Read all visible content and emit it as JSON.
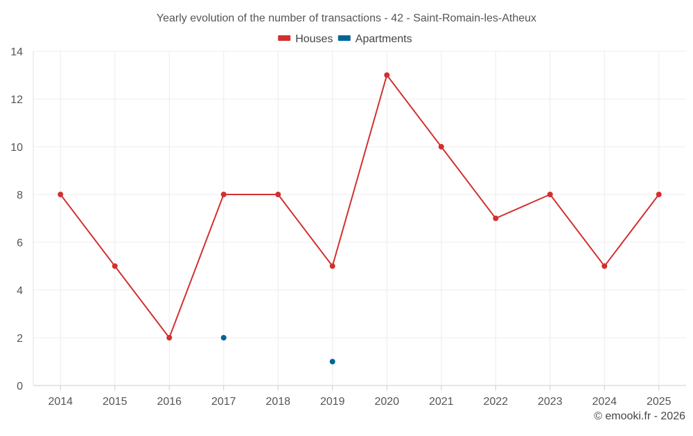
{
  "chart_data": {
    "type": "line",
    "title": "Yearly evolution of the number of transactions - 42 - Saint-Romain-les-Atheux",
    "categories": [
      "2014",
      "2015",
      "2016",
      "2017",
      "2018",
      "2019",
      "2020",
      "2021",
      "2022",
      "2023",
      "2024",
      "2025"
    ],
    "series": [
      {
        "name": "Houses",
        "color": "#d32f2f",
        "values": [
          8,
          5,
          2,
          8,
          8,
          5,
          13,
          10,
          7,
          8,
          5,
          8
        ]
      },
      {
        "name": "Apartments",
        "color": "#006699",
        "values": [
          null,
          null,
          null,
          2,
          null,
          1,
          null,
          null,
          null,
          null,
          null,
          null
        ]
      }
    ],
    "ylim": [
      0,
      14
    ],
    "yticks": [
      0,
      2,
      4,
      6,
      8,
      10,
      12,
      14
    ],
    "xlabel": "",
    "ylabel": "",
    "legend": "top-center",
    "grid": true
  },
  "credit": "© emooki.fr - 2026"
}
